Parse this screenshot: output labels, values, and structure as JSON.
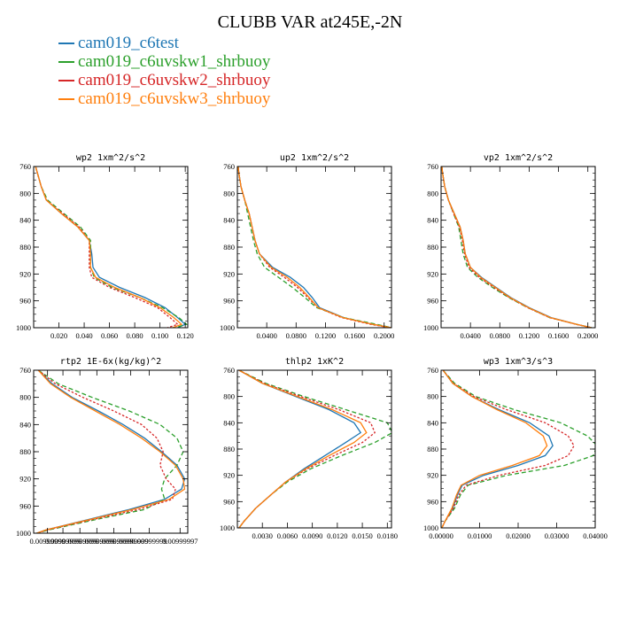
{
  "title": "CLUBB VAR at245E,-2N",
  "legend": [
    {
      "name": "cam019_c6test",
      "color": "#1f77b4",
      "dash": "solid"
    },
    {
      "name": "cam019_c6uvskw1_shrbuoy",
      "color": "#2ca02c",
      "dash": "dashed"
    },
    {
      "name": "cam019_c6uvskw2_shrbuoy",
      "color": "#d62728",
      "dash": "dotted"
    },
    {
      "name": "cam019_c6uvskw3_shrbuoy",
      "color": "#ff7f0e",
      "dash": "solid"
    }
  ],
  "chart_data": [
    {
      "type": "line",
      "title": "wp2  1xm^2/s^2",
      "xlim": [
        0,
        0.122
      ],
      "ylim": [
        760,
        1000
      ],
      "xticks": [
        "0.020",
        "0.040",
        "0.060",
        "0.080",
        "0.100",
        "0.120"
      ],
      "xtick_values": [
        0.02,
        0.04,
        0.06,
        0.08,
        0.1,
        0.12
      ],
      "yticks": [
        "760",
        "800",
        "840",
        "880",
        "920",
        "960",
        "1000"
      ],
      "ytick_values": [
        760,
        800,
        840,
        880,
        920,
        960,
        1000
      ],
      "levels": [
        750,
        770,
        790,
        810,
        830,
        850,
        870,
        890,
        910,
        925,
        940,
        955,
        970,
        985,
        995,
        1000
      ],
      "series": [
        {
          "values": [
            0.0,
            0.003,
            0.006,
            0.01,
            0.022,
            0.035,
            0.044,
            0.046,
            0.047,
            0.052,
            0.068,
            0.088,
            0.104,
            0.114,
            0.12,
            0.114
          ]
        },
        {
          "values": [
            0.0,
            0.003,
            0.006,
            0.011,
            0.024,
            0.037,
            0.045,
            0.045,
            0.045,
            0.048,
            0.062,
            0.084,
            0.102,
            0.115,
            0.121,
            0.112
          ]
        },
        {
          "values": [
            0.0,
            0.003,
            0.006,
            0.01,
            0.023,
            0.036,
            0.044,
            0.044,
            0.044,
            0.046,
            0.06,
            0.08,
            0.098,
            0.108,
            0.114,
            0.106
          ]
        },
        {
          "values": [
            0.0,
            0.003,
            0.006,
            0.01,
            0.022,
            0.035,
            0.044,
            0.045,
            0.045,
            0.049,
            0.064,
            0.084,
            0.1,
            0.111,
            0.117,
            0.11
          ]
        }
      ]
    },
    {
      "type": "line",
      "title": "up2  1xm^2/s^2",
      "xlim": [
        0,
        0.21
      ],
      "ylim": [
        760,
        1000
      ],
      "xticks": [
        "0.0400",
        "0.0800",
        "0.1200",
        "0.1600",
        "0.2000"
      ],
      "xtick_values": [
        0.04,
        0.08,
        0.12,
        0.16,
        0.2
      ],
      "yticks": [
        "760",
        "800",
        "840",
        "880",
        "920",
        "960",
        "1000"
      ],
      "ytick_values": [
        760,
        800,
        840,
        880,
        920,
        960,
        1000
      ],
      "levels": [
        750,
        770,
        790,
        810,
        830,
        850,
        870,
        890,
        910,
        925,
        940,
        955,
        970,
        985,
        995,
        1000
      ],
      "series": [
        {
          "values": [
            0.0,
            0.002,
            0.005,
            0.01,
            0.016,
            0.02,
            0.024,
            0.03,
            0.048,
            0.072,
            0.09,
            0.102,
            0.112,
            0.145,
            0.185,
            0.21
          ]
        },
        {
          "values": [
            0.0,
            0.002,
            0.005,
            0.01,
            0.014,
            0.018,
            0.022,
            0.027,
            0.037,
            0.056,
            0.075,
            0.092,
            0.108,
            0.145,
            0.19,
            0.21
          ]
        },
        {
          "values": [
            0.0,
            0.002,
            0.005,
            0.01,
            0.016,
            0.02,
            0.024,
            0.03,
            0.044,
            0.064,
            0.082,
            0.096,
            0.11,
            0.142,
            0.182,
            0.208
          ]
        },
        {
          "values": [
            0.0,
            0.002,
            0.005,
            0.01,
            0.016,
            0.02,
            0.024,
            0.03,
            0.046,
            0.068,
            0.085,
            0.098,
            0.11,
            0.144,
            0.185,
            0.21
          ]
        }
      ]
    },
    {
      "type": "line",
      "title": "vp2  1xm^2/s^2",
      "xlim": [
        0,
        0.21
      ],
      "ylim": [
        760,
        1000
      ],
      "xticks": [
        "0.0400",
        "0.0800",
        "0.1200",
        "0.1600",
        "0.2000"
      ],
      "xtick_values": [
        0.04,
        0.08,
        0.12,
        0.16,
        0.2
      ],
      "yticks": [
        "760",
        "800",
        "840",
        "880",
        "920",
        "960",
        "1000"
      ],
      "ytick_values": [
        760,
        800,
        840,
        880,
        920,
        960,
        1000
      ],
      "levels": [
        750,
        770,
        790,
        810,
        830,
        850,
        870,
        890,
        910,
        925,
        940,
        955,
        970,
        985,
        995,
        1000
      ],
      "series": [
        {
          "values": [
            0.0,
            0.002,
            0.005,
            0.01,
            0.018,
            0.026,
            0.03,
            0.033,
            0.04,
            0.055,
            0.075,
            0.095,
            0.12,
            0.15,
            0.185,
            0.205
          ]
        },
        {
          "values": [
            0.0,
            0.002,
            0.005,
            0.01,
            0.017,
            0.024,
            0.027,
            0.03,
            0.036,
            0.05,
            0.07,
            0.092,
            0.118,
            0.148,
            0.185,
            0.205
          ]
        },
        {
          "values": [
            0.0,
            0.002,
            0.005,
            0.01,
            0.017,
            0.025,
            0.029,
            0.032,
            0.038,
            0.052,
            0.072,
            0.093,
            0.118,
            0.148,
            0.184,
            0.205
          ]
        },
        {
          "values": [
            0.0,
            0.002,
            0.005,
            0.01,
            0.018,
            0.026,
            0.03,
            0.033,
            0.04,
            0.054,
            0.074,
            0.094,
            0.119,
            0.149,
            0.185,
            0.205
          ]
        }
      ]
    },
    {
      "type": "line",
      "title": "rtp2  1E-6x(kg/kg)^2",
      "xlim": [
        0,
        1
      ],
      "ylim": [
        760,
        1000
      ],
      "xticks": [
        "0.00999999",
        "0.00999999",
        "0.00999999",
        "0.00999999",
        "0.00999999",
        "0.00999999",
        "0.00999999",
        "0.00999997"
      ],
      "xtick_values": [
        0.09,
        0.19,
        0.3,
        0.41,
        0.52,
        0.63,
        0.75,
        0.95
      ],
      "yticks": [
        "760",
        "800",
        "840",
        "880",
        "920",
        "960",
        "1000"
      ],
      "ytick_values": [
        760,
        800,
        840,
        880,
        920,
        960,
        1000
      ],
      "levels": [
        760,
        780,
        800,
        820,
        840,
        860,
        880,
        900,
        920,
        935,
        950,
        965,
        980,
        995,
        1000
      ],
      "series": [
        {
          "values": [
            0.03,
            0.12,
            0.25,
            0.42,
            0.58,
            0.72,
            0.83,
            0.93,
            0.98,
            0.96,
            0.85,
            0.62,
            0.35,
            0.08,
            0.02
          ]
        },
        {
          "values": [
            0.03,
            0.16,
            0.38,
            0.62,
            0.82,
            0.93,
            0.97,
            0.93,
            0.85,
            0.83,
            0.85,
            0.72,
            0.4,
            0.1,
            0.02
          ]
        },
        {
          "values": [
            0.03,
            0.14,
            0.32,
            0.52,
            0.7,
            0.8,
            0.84,
            0.82,
            0.86,
            0.92,
            0.9,
            0.68,
            0.38,
            0.09,
            0.02
          ]
        },
        {
          "values": [
            0.03,
            0.11,
            0.24,
            0.4,
            0.56,
            0.7,
            0.82,
            0.92,
            0.97,
            0.98,
            0.88,
            0.64,
            0.36,
            0.08,
            0.02
          ]
        }
      ]
    },
    {
      "type": "line",
      "title": "thlp2  1xK^2",
      "xlim": [
        0,
        0.0185
      ],
      "ylim": [
        760,
        1000
      ],
      "xticks": [
        "0.0030",
        "0.0060",
        "0.0090",
        "0.0120",
        "0.0150",
        "0.0180"
      ],
      "xtick_values": [
        0.003,
        0.006,
        0.009,
        0.012,
        0.015,
        0.018
      ],
      "yticks": [
        "760",
        "800",
        "840",
        "880",
        "920",
        "960",
        "1000"
      ],
      "ytick_values": [
        760,
        800,
        840,
        880,
        920,
        960,
        1000
      ],
      "levels": [
        760,
        780,
        800,
        820,
        840,
        855,
        870,
        890,
        910,
        930,
        950,
        970,
        990,
        1000
      ],
      "series": [
        {
          "values": [
            0.0002,
            0.003,
            0.007,
            0.011,
            0.014,
            0.0148,
            0.013,
            0.0105,
            0.008,
            0.0058,
            0.004,
            0.0022,
            0.0008,
            0.0002
          ]
        },
        {
          "values": [
            0.0002,
            0.0034,
            0.008,
            0.013,
            0.018,
            0.0186,
            0.0165,
            0.0125,
            0.0088,
            0.006,
            0.004,
            0.0022,
            0.0008,
            0.0002
          ]
        },
        {
          "values": [
            0.0002,
            0.0032,
            0.0076,
            0.0122,
            0.016,
            0.0165,
            0.015,
            0.0116,
            0.0084,
            0.0058,
            0.004,
            0.0022,
            0.0008,
            0.0002
          ]
        },
        {
          "values": [
            0.0002,
            0.003,
            0.0072,
            0.0114,
            0.0148,
            0.0155,
            0.014,
            0.011,
            0.0082,
            0.0058,
            0.004,
            0.0022,
            0.0008,
            0.0002
          ]
        }
      ]
    },
    {
      "type": "line",
      "title": "wp3  1xm^3/s^3",
      "xlim": [
        0,
        0.04
      ],
      "ylim": [
        760,
        1000
      ],
      "xticks": [
        "0.00000",
        "0.01000",
        "0.02000",
        "0.03000",
        "0.04000"
      ],
      "xtick_values": [
        0,
        0.01,
        0.02,
        0.03,
        0.04
      ],
      "yticks": [
        "760",
        "800",
        "840",
        "880",
        "920",
        "960",
        "1000"
      ],
      "ytick_values": [
        760,
        800,
        840,
        880,
        920,
        960,
        1000
      ],
      "levels": [
        760,
        780,
        800,
        820,
        840,
        860,
        875,
        890,
        905,
        920,
        935,
        950,
        970,
        990,
        1000
      ],
      "series": [
        {
          "values": [
            0.0005,
            0.003,
            0.008,
            0.015,
            0.023,
            0.028,
            0.029,
            0.027,
            0.02,
            0.011,
            0.0055,
            0.0042,
            0.003,
            0.001,
            0.0002
          ]
        },
        {
          "values": [
            0.0005,
            0.0035,
            0.009,
            0.019,
            0.031,
            0.038,
            0.0405,
            0.0395,
            0.032,
            0.017,
            0.007,
            0.005,
            0.0035,
            0.001,
            0.0002
          ]
        },
        {
          "values": [
            0.0005,
            0.0032,
            0.0085,
            0.017,
            0.027,
            0.033,
            0.0345,
            0.033,
            0.027,
            0.015,
            0.0065,
            0.0046,
            0.0032,
            0.001,
            0.0002
          ]
        },
        {
          "values": [
            0.0005,
            0.003,
            0.008,
            0.0145,
            0.022,
            0.0265,
            0.0275,
            0.0255,
            0.0185,
            0.01,
            0.0052,
            0.004,
            0.0028,
            0.001,
            0.0002
          ]
        }
      ]
    }
  ]
}
